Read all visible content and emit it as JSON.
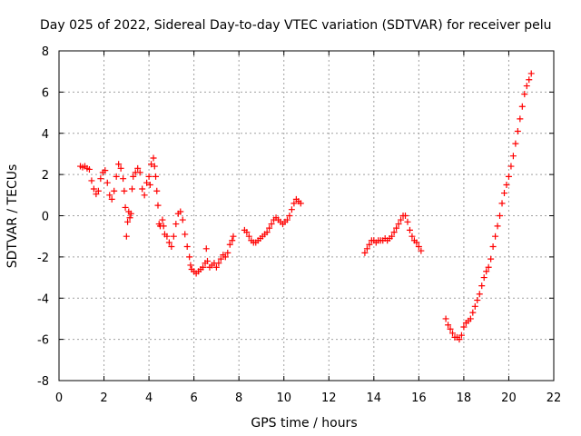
{
  "chart_data": {
    "type": "scatter",
    "title": "Day 025 of 2022, Sidereal Day-to-day VTEC variation (SDTVAR) for receiver pelu",
    "xlabel": "GPS time / hours",
    "ylabel": "SDTVAR / TECUs",
    "xlim": [
      0,
      22
    ],
    "ylim": [
      -8,
      8
    ],
    "xticks": [
      0,
      2,
      4,
      6,
      8,
      10,
      12,
      14,
      16,
      18,
      20,
      22
    ],
    "yticks": [
      -8,
      -6,
      -4,
      -2,
      0,
      2,
      4,
      6,
      8
    ],
    "grid": true,
    "marker": "plus",
    "color": "#ff0000",
    "series": [
      {
        "name": "SDTVAR",
        "points": [
          [
            0.95,
            2.4
          ],
          [
            1.05,
            2.35
          ],
          [
            1.15,
            2.4
          ],
          [
            1.25,
            2.3
          ],
          [
            1.35,
            2.25
          ],
          [
            1.45,
            1.7
          ],
          [
            1.55,
            1.3
          ],
          [
            1.65,
            1.05
          ],
          [
            1.75,
            1.2
          ],
          [
            1.85,
            1.8
          ],
          [
            1.95,
            2.1
          ],
          [
            2.05,
            2.2
          ],
          [
            2.15,
            1.6
          ],
          [
            2.25,
            1.0
          ],
          [
            2.35,
            0.8
          ],
          [
            2.45,
            1.2
          ],
          [
            2.55,
            1.9
          ],
          [
            2.65,
            2.5
          ],
          [
            2.75,
            2.3
          ],
          [
            2.85,
            1.8
          ],
          [
            2.9,
            1.2
          ],
          [
            2.95,
            0.4
          ],
          [
            3.0,
            -1.0
          ],
          [
            3.05,
            -0.3
          ],
          [
            3.1,
            0.2
          ],
          [
            3.15,
            -0.1
          ],
          [
            3.2,
            0.1
          ],
          [
            3.25,
            1.3
          ],
          [
            3.3,
            1.9
          ],
          [
            3.4,
            2.1
          ],
          [
            3.5,
            2.3
          ],
          [
            3.6,
            2.1
          ],
          [
            3.7,
            1.3
          ],
          [
            3.8,
            1.0
          ],
          [
            3.9,
            1.6
          ],
          [
            4.0,
            1.9
          ],
          [
            4.05,
            1.5
          ],
          [
            4.1,
            2.5
          ],
          [
            4.2,
            2.8
          ],
          [
            4.25,
            2.4
          ],
          [
            4.3,
            1.9
          ],
          [
            4.35,
            1.2
          ],
          [
            4.4,
            0.5
          ],
          [
            4.45,
            -0.4
          ],
          [
            4.5,
            -0.5
          ],
          [
            4.6,
            -0.2
          ],
          [
            4.65,
            -0.5
          ],
          [
            4.7,
            -0.9
          ],
          [
            4.8,
            -1.0
          ],
          [
            4.9,
            -1.3
          ],
          [
            5.0,
            -1.5
          ],
          [
            5.1,
            -1.0
          ],
          [
            5.2,
            -0.4
          ],
          [
            5.3,
            0.1
          ],
          [
            5.4,
            0.2
          ],
          [
            5.5,
            -0.2
          ],
          [
            5.6,
            -0.9
          ],
          [
            5.7,
            -1.5
          ],
          [
            5.8,
            -2.0
          ],
          [
            5.85,
            -2.4
          ],
          [
            5.9,
            -2.6
          ],
          [
            6.0,
            -2.7
          ],
          [
            6.1,
            -2.8
          ],
          [
            6.2,
            -2.7
          ],
          [
            6.3,
            -2.6
          ],
          [
            6.4,
            -2.5
          ],
          [
            6.5,
            -2.3
          ],
          [
            6.55,
            -1.6
          ],
          [
            6.6,
            -2.2
          ],
          [
            6.7,
            -2.5
          ],
          [
            6.8,
            -2.4
          ],
          [
            6.9,
            -2.3
          ],
          [
            7.0,
            -2.5
          ],
          [
            7.1,
            -2.3
          ],
          [
            7.2,
            -2.1
          ],
          [
            7.3,
            -1.9
          ],
          [
            7.4,
            -2.0
          ],
          [
            7.5,
            -1.8
          ],
          [
            7.6,
            -1.4
          ],
          [
            7.7,
            -1.2
          ],
          [
            7.75,
            -1.0
          ],
          [
            8.25,
            -0.7
          ],
          [
            8.35,
            -0.8
          ],
          [
            8.45,
            -1.0
          ],
          [
            8.55,
            -1.2
          ],
          [
            8.65,
            -1.3
          ],
          [
            8.75,
            -1.3
          ],
          [
            8.85,
            -1.2
          ],
          [
            8.95,
            -1.1
          ],
          [
            9.05,
            -1.0
          ],
          [
            9.15,
            -0.9
          ],
          [
            9.25,
            -0.8
          ],
          [
            9.35,
            -0.6
          ],
          [
            9.45,
            -0.4
          ],
          [
            9.55,
            -0.2
          ],
          [
            9.65,
            -0.1
          ],
          [
            9.75,
            -0.2
          ],
          [
            9.85,
            -0.3
          ],
          [
            9.95,
            -0.4
          ],
          [
            10.05,
            -0.3
          ],
          [
            10.15,
            -0.2
          ],
          [
            10.25,
            0.0
          ],
          [
            10.35,
            0.3
          ],
          [
            10.45,
            0.6
          ],
          [
            10.55,
            0.8
          ],
          [
            10.65,
            0.7
          ],
          [
            10.75,
            0.6
          ],
          [
            13.6,
            -1.8
          ],
          [
            13.7,
            -1.6
          ],
          [
            13.8,
            -1.4
          ],
          [
            13.9,
            -1.2
          ],
          [
            14.0,
            -1.2
          ],
          [
            14.1,
            -1.3
          ],
          [
            14.2,
            -1.2
          ],
          [
            14.3,
            -1.2
          ],
          [
            14.4,
            -1.2
          ],
          [
            14.5,
            -1.1
          ],
          [
            14.6,
            -1.2
          ],
          [
            14.7,
            -1.1
          ],
          [
            14.8,
            -1.0
          ],
          [
            14.9,
            -0.8
          ],
          [
            15.0,
            -0.6
          ],
          [
            15.1,
            -0.4
          ],
          [
            15.2,
            -0.2
          ],
          [
            15.3,
            0.0
          ],
          [
            15.4,
            0.0
          ],
          [
            15.5,
            -0.3
          ],
          [
            15.6,
            -0.7
          ],
          [
            15.7,
            -1.0
          ],
          [
            15.8,
            -1.2
          ],
          [
            15.9,
            -1.3
          ],
          [
            16.0,
            -1.5
          ],
          [
            16.1,
            -1.7
          ],
          [
            17.2,
            -5.0
          ],
          [
            17.3,
            -5.3
          ],
          [
            17.4,
            -5.5
          ],
          [
            17.5,
            -5.7
          ],
          [
            17.6,
            -5.9
          ],
          [
            17.7,
            -5.9
          ],
          [
            17.8,
            -6.0
          ],
          [
            17.9,
            -5.8
          ],
          [
            18.0,
            -5.4
          ],
          [
            18.1,
            -5.2
          ],
          [
            18.2,
            -5.1
          ],
          [
            18.3,
            -5.0
          ],
          [
            18.4,
            -4.7
          ],
          [
            18.5,
            -4.4
          ],
          [
            18.6,
            -4.1
          ],
          [
            18.7,
            -3.8
          ],
          [
            18.8,
            -3.4
          ],
          [
            18.9,
            -3.0
          ],
          [
            19.0,
            -2.7
          ],
          [
            19.1,
            -2.5
          ],
          [
            19.2,
            -2.1
          ],
          [
            19.3,
            -1.5
          ],
          [
            19.4,
            -1.0
          ],
          [
            19.5,
            -0.5
          ],
          [
            19.6,
            0.0
          ],
          [
            19.7,
            0.6
          ],
          [
            19.8,
            1.1
          ],
          [
            19.9,
            1.5
          ],
          [
            20.0,
            1.9
          ],
          [
            20.1,
            2.4
          ],
          [
            20.2,
            2.9
          ],
          [
            20.3,
            3.5
          ],
          [
            20.4,
            4.1
          ],
          [
            20.5,
            4.7
          ],
          [
            20.6,
            5.3
          ],
          [
            20.7,
            5.9
          ],
          [
            20.8,
            6.3
          ],
          [
            20.9,
            6.6
          ],
          [
            21.0,
            6.9
          ]
        ]
      }
    ]
  }
}
